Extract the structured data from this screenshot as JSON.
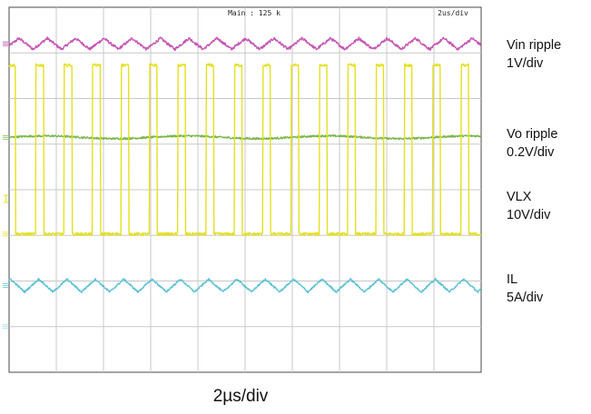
{
  "chart_data": {
    "type": "line",
    "instrument": "oscilloscope",
    "grid": true,
    "divisions": {
      "x": 10,
      "y": 8
    },
    "header": {
      "main_label": "Main : 125 k",
      "timebase_label": "2us/div"
    },
    "xlabel": "2µs/div",
    "switching_period_div": 0.6,
    "series": [
      {
        "name": "Vin ripple",
        "scale": "1V/div",
        "color": "#c655b3",
        "baseline_div": 0.8,
        "waveform": "triangle",
        "amplitude_div": 0.12,
        "phase": 0.15,
        "noise_div": 0.03
      },
      {
        "name": "Vo ripple",
        "scale": "0.2V/div",
        "color": "#7ab648",
        "baseline_div": 2.85,
        "waveform": "sine",
        "amplitude_div": 0.03,
        "phase": 0.0,
        "noise_div": 0.02
      },
      {
        "name": "VLX",
        "scale": "10V/div",
        "color": "#e5e01e",
        "baseline_div": 4.97,
        "waveform": "pulse",
        "high_div": 3.7,
        "duty": 0.28,
        "phase": 0.05,
        "noise_div": 0.03
      },
      {
        "name": "IL",
        "scale": "5A/div",
        "color": "#5bc1d3",
        "baseline_div": 6.1,
        "waveform": "triangle",
        "amplitude_div": 0.14,
        "phase": 0.45,
        "noise_div": 0.02
      }
    ],
    "labels": [
      {
        "name": "Vin ripple",
        "scale": "1V/div"
      },
      {
        "name": "Vo ripple",
        "scale": "0.2V/div"
      },
      {
        "name": "VLX",
        "scale": "10V/div"
      },
      {
        "name": "IL",
        "scale": "5A/div"
      }
    ]
  }
}
